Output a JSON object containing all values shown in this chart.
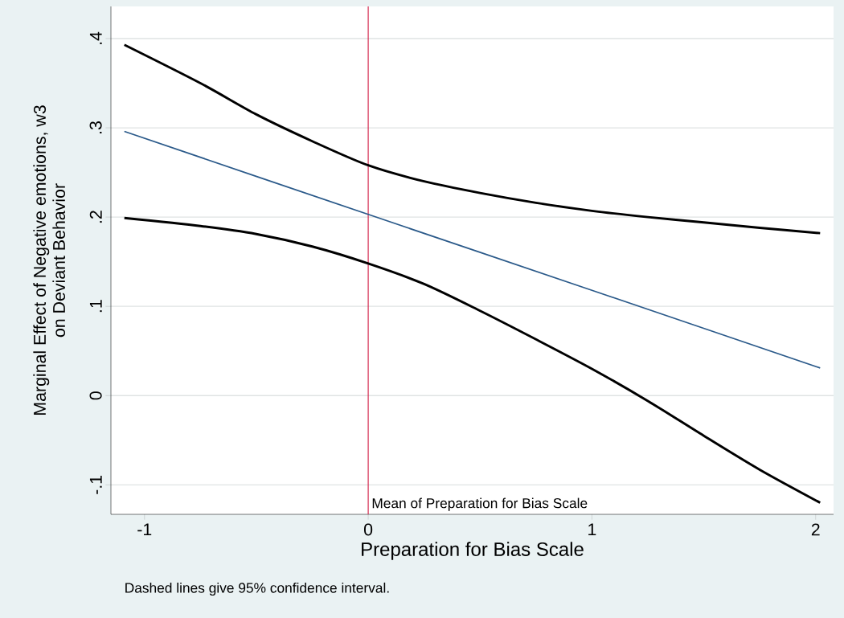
{
  "chart_data": {
    "type": "line",
    "xlabel": "Preparation for Bias Scale",
    "ylabel": "Marginal Effect of Negative emotions, w3\non Deviant Behavior",
    "series": [
      {
        "color": "#000000",
        "x": [
          -1.09,
          -0.75,
          -0.5,
          -0.25,
          0,
          0.25,
          0.5,
          0.75,
          1,
          1.25,
          1.5,
          1.75,
          2.02
        ],
        "values": [
          0.393,
          0.35,
          0.315,
          0.285,
          0.258,
          0.24,
          0.227,
          0.216,
          0.207,
          0.2,
          0.194,
          0.188,
          0.182
        ]
      },
      {
        "color": "#2b5a8a",
        "x": [
          -1.09,
          0,
          1,
          2.02
        ],
        "values": [
          0.296,
          0.203,
          0.118,
          0.031
        ]
      },
      {
        "color": "#000000",
        "x": [
          -1.09,
          -0.75,
          -0.5,
          -0.25,
          0,
          0.25,
          0.5,
          0.75,
          1,
          1.25,
          1.5,
          1.75,
          2.02
        ],
        "values": [
          0.199,
          0.19,
          0.181,
          0.167,
          0.148,
          0.125,
          0.095,
          0.063,
          0.03,
          -0.006,
          -0.045,
          -0.083,
          -0.12
        ]
      }
    ],
    "xlim": [
      -1.15,
      2.08
    ],
    "ylim": [
      -0.133,
      0.436
    ],
    "xticks": [
      -1,
      0,
      1,
      2
    ],
    "yticks": [
      {
        "value": -0.1,
        "label": "-.1"
      },
      0,
      {
        "value": 0.1,
        "label": ".1"
      },
      {
        "value": 0.2,
        "label": ".2"
      },
      {
        "value": 0.3,
        "label": ".3"
      },
      {
        "value": 0.4,
        "label": ".4"
      }
    ],
    "grid": "y",
    "line_style": "solid",
    "marker": "none",
    "ref_lines": [
      {
        "axis": "x",
        "value": 0,
        "label": "Mean of Preparation for Bias Scale",
        "color": "#d0103a"
      }
    ],
    "annotations": [
      "Dashed lines give 95% confidence interval."
    ]
  }
}
